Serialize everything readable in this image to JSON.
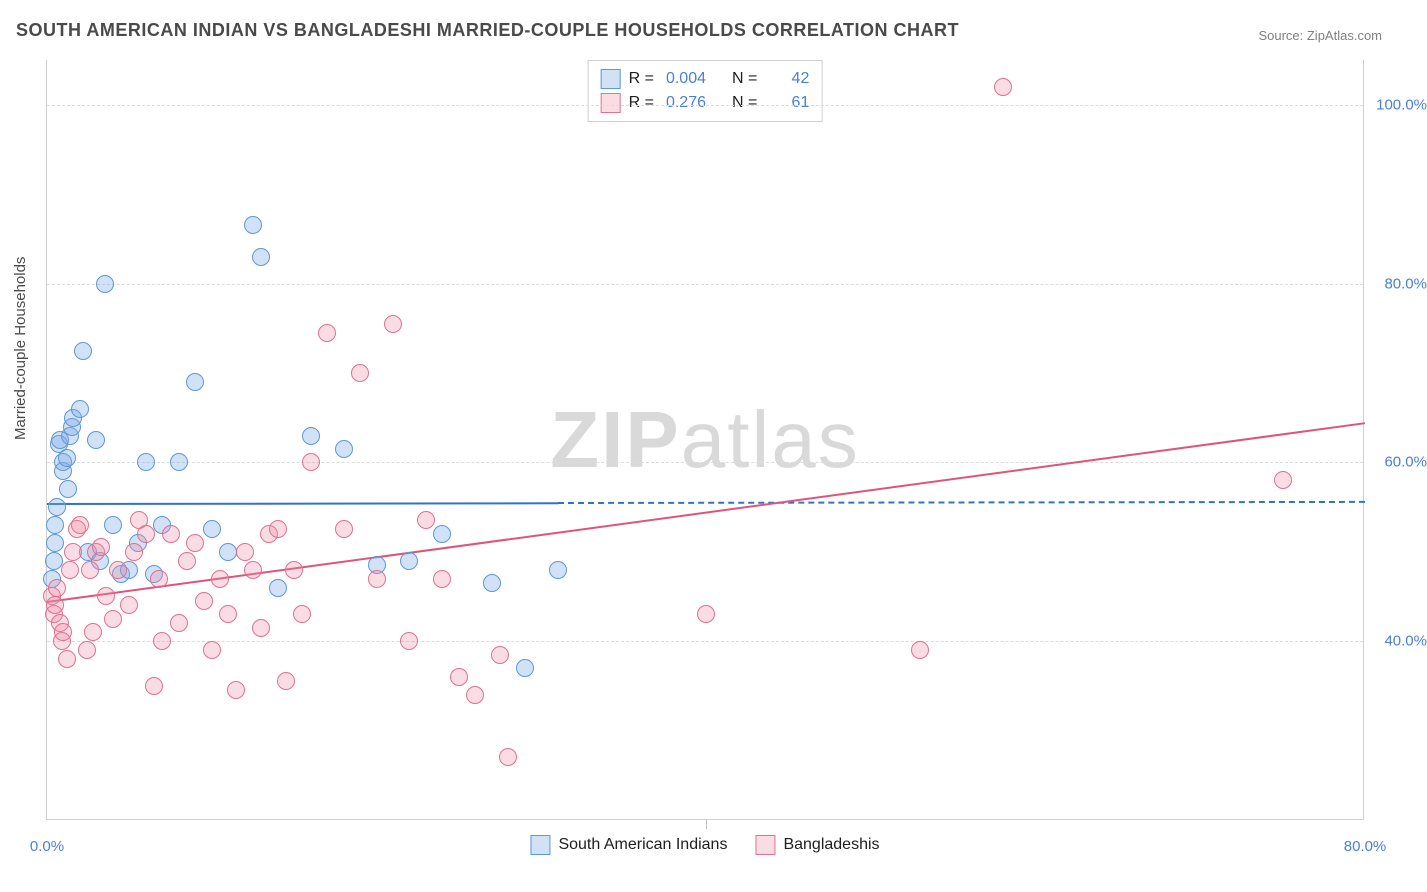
{
  "title": "SOUTH AMERICAN INDIAN VS BANGLADESHI MARRIED-COUPLE HOUSEHOLDS CORRELATION CHART",
  "source_label": "Source: ZipAtlas.com",
  "watermark": {
    "bold": "ZIP",
    "rest": "atlas"
  },
  "chart": {
    "type": "scatter",
    "background_color": "#ffffff",
    "grid_color": "#dcdcdc",
    "border_color": "#d0d0d0",
    "label_color": "#4a7fd8",
    "axis_title_color": "#4a4a4a",
    "title_color": "#4a4a4a",
    "title_fontsize": 18,
    "label_fontsize": 15,
    "x": {
      "min": 0,
      "max": 80,
      "ticks": [
        0,
        40,
        80
      ],
      "tick_labels": [
        "0.0%",
        "",
        "80.0%"
      ],
      "with_vticks": [
        40
      ]
    },
    "y": {
      "min": 20,
      "max": 105,
      "title": "Married-couple Households",
      "ticks": [
        40,
        60,
        80,
        100
      ],
      "tick_labels": [
        "40.0%",
        "60.0%",
        "80.0%",
        "100.0%"
      ]
    },
    "point_radius": 9,
    "point_border_width": 1.2,
    "trend_line_width": 2,
    "series": [
      {
        "name": "South American Indians",
        "fill": "rgba(122,170,230,0.35)",
        "stroke": "#5e98d6",
        "line_color": "#2f74c9",
        "R": "0.004",
        "N": "42",
        "trend": {
          "x1": 0,
          "y1": 55.5,
          "x2": 80,
          "y2": 55.7,
          "solid_until_x": 31
        },
        "points": [
          [
            0.3,
            47
          ],
          [
            0.4,
            49
          ],
          [
            0.5,
            51
          ],
          [
            0.5,
            53
          ],
          [
            0.6,
            55
          ],
          [
            0.7,
            62
          ],
          [
            0.8,
            62.5
          ],
          [
            1,
            59
          ],
          [
            1,
            60
          ],
          [
            1.2,
            60.5
          ],
          [
            1.3,
            57
          ],
          [
            1.4,
            63
          ],
          [
            1.5,
            64
          ],
          [
            1.6,
            65
          ],
          [
            2,
            66
          ],
          [
            2.2,
            72.5
          ],
          [
            2.5,
            50
          ],
          [
            3,
            62.5
          ],
          [
            3.2,
            49
          ],
          [
            3.5,
            80
          ],
          [
            4,
            53
          ],
          [
            4.5,
            47.5
          ],
          [
            5,
            48
          ],
          [
            5.5,
            51
          ],
          [
            6,
            60
          ],
          [
            6.5,
            47.5
          ],
          [
            7,
            53
          ],
          [
            8,
            60
          ],
          [
            9,
            69
          ],
          [
            10,
            52.5
          ],
          [
            11,
            50
          ],
          [
            12.5,
            86.5
          ],
          [
            13,
            83
          ],
          [
            14,
            46
          ],
          [
            16,
            63
          ],
          [
            18,
            61.5
          ],
          [
            20,
            48.5
          ],
          [
            22,
            49
          ],
          [
            24,
            52
          ],
          [
            27,
            46.5
          ],
          [
            29,
            37
          ],
          [
            31,
            48
          ]
        ]
      },
      {
        "name": "Bangladeshis",
        "fill": "rgba(238,140,165,0.30)",
        "stroke": "#e2708f",
        "line_color": "#e0537a",
        "R": "0.276",
        "N": "61",
        "trend": {
          "x1": 0,
          "y1": 44.5,
          "x2": 80,
          "y2": 64.5
        },
        "points": [
          [
            0.3,
            45
          ],
          [
            0.4,
            43
          ],
          [
            0.5,
            44
          ],
          [
            0.6,
            46
          ],
          [
            0.8,
            42
          ],
          [
            0.9,
            40
          ],
          [
            1,
            41
          ],
          [
            1.2,
            38
          ],
          [
            1.4,
            48
          ],
          [
            1.6,
            50
          ],
          [
            1.8,
            52.5
          ],
          [
            2,
            53
          ],
          [
            2.4,
            39
          ],
          [
            2.6,
            48
          ],
          [
            2.8,
            41
          ],
          [
            3,
            50
          ],
          [
            3.3,
            50.5
          ],
          [
            3.6,
            45
          ],
          [
            4,
            42.5
          ],
          [
            4.3,
            48
          ],
          [
            5,
            44
          ],
          [
            5.3,
            50
          ],
          [
            5.6,
            53.5
          ],
          [
            6,
            52
          ],
          [
            6.5,
            35
          ],
          [
            6.8,
            47
          ],
          [
            7,
            40
          ],
          [
            7.5,
            52
          ],
          [
            8,
            42
          ],
          [
            8.5,
            49
          ],
          [
            9,
            51
          ],
          [
            9.5,
            44.5
          ],
          [
            10,
            39
          ],
          [
            10.5,
            47
          ],
          [
            11,
            43
          ],
          [
            11.5,
            34.5
          ],
          [
            12,
            50
          ],
          [
            12.5,
            48
          ],
          [
            13,
            41.5
          ],
          [
            13.5,
            52
          ],
          [
            14,
            52.5
          ],
          [
            14.5,
            35.5
          ],
          [
            15,
            48
          ],
          [
            15.5,
            43
          ],
          [
            16,
            60
          ],
          [
            17,
            74.5
          ],
          [
            18,
            52.5
          ],
          [
            19,
            70
          ],
          [
            20,
            47
          ],
          [
            21,
            75.5
          ],
          [
            22,
            40
          ],
          [
            23,
            53.5
          ],
          [
            24,
            47
          ],
          [
            25,
            36
          ],
          [
            26,
            34
          ],
          [
            27.5,
            38.5
          ],
          [
            28,
            27
          ],
          [
            40,
            43
          ],
          [
            53,
            39
          ],
          [
            58,
            102
          ],
          [
            75,
            58
          ]
        ]
      }
    ],
    "legend_top": {
      "rows": [
        {
          "swatch_series": 0,
          "R": "0.004",
          "N": "42"
        },
        {
          "swatch_series": 1,
          "R": "0.276",
          "N": "61"
        }
      ]
    },
    "legend_bottom": {
      "items": [
        {
          "swatch_series": 0,
          "label": "South American Indians"
        },
        {
          "swatch_series": 1,
          "label": "Bangladeshis"
        }
      ]
    }
  }
}
